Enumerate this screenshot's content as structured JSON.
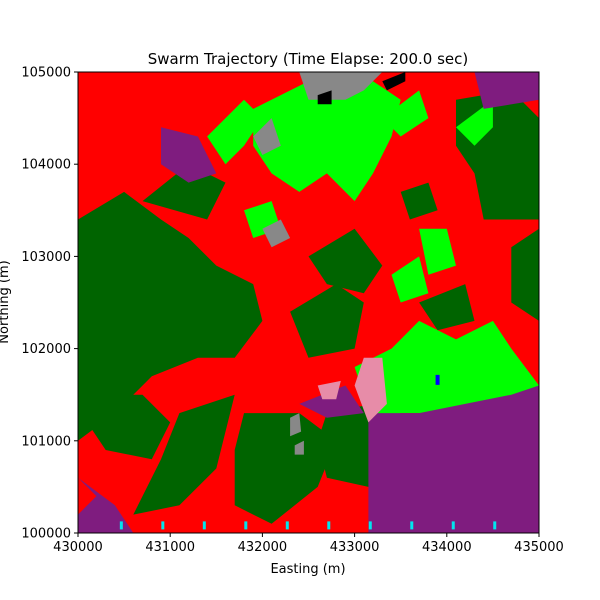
{
  "chart_data": {
    "type": "heatmap",
    "title": "Swarm Trajectory (Time Elapse: 200.0 sec)",
    "xlabel": "Easting (m)",
    "ylabel": "Northing (m)",
    "xlim": [
      430000,
      435000
    ],
    "ylim": [
      100000,
      105000
    ],
    "x_ticks": [
      430000,
      431000,
      432000,
      433000,
      434000,
      435000
    ],
    "y_ticks": [
      100000,
      101000,
      102000,
      103000,
      104000,
      105000
    ],
    "x_tick_labels": [
      "430000",
      "431000",
      "432000",
      "433000",
      "434000",
      "435000"
    ],
    "y_tick_labels": [
      "100000",
      "101000",
      "102000",
      "103000",
      "104000",
      "105000"
    ],
    "grid": false,
    "colors": {
      "red": "#ff0000",
      "dark_green": "#006400",
      "bright_green": "#00ff00",
      "purple": "#7f1c7f",
      "gray": "#888888",
      "pink": "#e78ca8",
      "black": "#000000",
      "blue": "#0000ff",
      "cyan": "#00e5ee"
    },
    "agent_markers": {
      "color": "cyan",
      "northing": 100050,
      "easting": [
        430470,
        430920,
        431370,
        431820,
        432270,
        432720,
        433170,
        433620,
        434070,
        434520
      ]
    },
    "blue_marker": {
      "easting": 433900,
      "northing": 101650
    },
    "regions": [
      {
        "color": "red",
        "points": [
          [
            430000,
            105000
          ],
          [
            435000,
            105000
          ],
          [
            435000,
            100000
          ],
          [
            430000,
            100000
          ]
        ]
      },
      {
        "color": "dark_green",
        "points": [
          [
            430000,
            103400
          ],
          [
            430500,
            103700
          ],
          [
            430900,
            103400
          ],
          [
            431200,
            103200
          ],
          [
            431500,
            102900
          ],
          [
            431900,
            102700
          ],
          [
            432000,
            102300
          ],
          [
            431700,
            101900
          ],
          [
            431300,
            101900
          ],
          [
            430800,
            101700
          ],
          [
            430400,
            101300
          ],
          [
            430000,
            101000
          ]
        ]
      },
      {
        "color": "dark_green",
        "points": [
          [
            430700,
            103600
          ],
          [
            431200,
            104000
          ],
          [
            431600,
            103800
          ],
          [
            431400,
            103400
          ]
        ]
      },
      {
        "color": "dark_green",
        "points": [
          [
            430200,
            101500
          ],
          [
            430700,
            101500
          ],
          [
            431000,
            101200
          ],
          [
            430800,
            100800
          ],
          [
            430300,
            100900
          ],
          [
            430100,
            101200
          ]
        ]
      },
      {
        "color": "dark_green",
        "points": [
          [
            431100,
            101300
          ],
          [
            431700,
            101500
          ],
          [
            431500,
            100700
          ],
          [
            431100,
            100300
          ],
          [
            430600,
            100200
          ],
          [
            430900,
            100800
          ]
        ]
      },
      {
        "color": "dark_green",
        "points": [
          [
            431800,
            101300
          ],
          [
            432400,
            101300
          ],
          [
            432800,
            101000
          ],
          [
            432600,
            100500
          ],
          [
            432100,
            100100
          ],
          [
            431700,
            100300
          ],
          [
            431700,
            100900
          ]
        ]
      },
      {
        "color": "dark_green",
        "points": [
          [
            432300,
            102400
          ],
          [
            432800,
            102700
          ],
          [
            433100,
            102500
          ],
          [
            433000,
            102000
          ],
          [
            432500,
            101900
          ]
        ]
      },
      {
        "color": "dark_green",
        "points": [
          [
            432500,
            103000
          ],
          [
            433000,
            103300
          ],
          [
            433300,
            102900
          ],
          [
            433100,
            102600
          ],
          [
            432700,
            102700
          ]
        ]
      },
      {
        "color": "dark_green",
        "points": [
          [
            432700,
            101300
          ],
          [
            433200,
            101400
          ],
          [
            433300,
            101000
          ],
          [
            433150,
            100500
          ],
          [
            432700,
            100600
          ],
          [
            432600,
            101000
          ]
        ]
      },
      {
        "color": "dark_green",
        "points": [
          [
            433700,
            102500
          ],
          [
            434200,
            102700
          ],
          [
            434300,
            102300
          ],
          [
            433900,
            102200
          ]
        ]
      },
      {
        "color": "dark_green",
        "points": [
          [
            434100,
            104700
          ],
          [
            434700,
            104800
          ],
          [
            435000,
            104500
          ],
          [
            435000,
            103400
          ],
          [
            434400,
            103400
          ],
          [
            434300,
            103900
          ],
          [
            434100,
            104200
          ]
        ]
      },
      {
        "color": "dark_green",
        "points": [
          [
            434700,
            103100
          ],
          [
            435000,
            103300
          ],
          [
            435000,
            102300
          ],
          [
            434700,
            102500
          ]
        ]
      },
      {
        "color": "dark_green",
        "points": [
          [
            433500,
            103700
          ],
          [
            433800,
            103800
          ],
          [
            433900,
            103500
          ],
          [
            433600,
            103400
          ]
        ]
      },
      {
        "color": "bright_green",
        "points": [
          [
            431400,
            104300
          ],
          [
            431800,
            104700
          ],
          [
            432000,
            104500
          ],
          [
            431800,
            104200
          ],
          [
            431600,
            104000
          ]
        ]
      },
      {
        "color": "bright_green",
        "points": [
          [
            431900,
            104600
          ],
          [
            432500,
            104900
          ],
          [
            433200,
            104900
          ],
          [
            433500,
            104700
          ],
          [
            433400,
            104300
          ],
          [
            433200,
            103900
          ],
          [
            433000,
            103600
          ],
          [
            432700,
            103900
          ],
          [
            432400,
            103700
          ],
          [
            432100,
            103900
          ],
          [
            431900,
            104200
          ]
        ]
      },
      {
        "color": "bright_green",
        "points": [
          [
            433300,
            104500
          ],
          [
            433700,
            104800
          ],
          [
            433800,
            104500
          ],
          [
            433500,
            104300
          ]
        ]
      },
      {
        "color": "bright_green",
        "points": [
          [
            434100,
            104400
          ],
          [
            434500,
            104700
          ],
          [
            434500,
            104400
          ],
          [
            434300,
            104200
          ]
        ]
      },
      {
        "color": "bright_green",
        "points": [
          [
            431800,
            103500
          ],
          [
            432100,
            103600
          ],
          [
            432200,
            103300
          ],
          [
            431900,
            103200
          ]
        ]
      },
      {
        "color": "bright_green",
        "points": [
          [
            433400,
            102800
          ],
          [
            433700,
            103000
          ],
          [
            433800,
            102600
          ],
          [
            433500,
            102500
          ]
        ]
      },
      {
        "color": "bright_green",
        "points": [
          [
            433700,
            103300
          ],
          [
            434000,
            103300
          ],
          [
            434100,
            102900
          ],
          [
            433800,
            102800
          ]
        ]
      },
      {
        "color": "bright_green",
        "points": [
          [
            433000,
            101800
          ],
          [
            433400,
            102000
          ],
          [
            433700,
            102300
          ],
          [
            434100,
            102100
          ],
          [
            434500,
            102300
          ],
          [
            434700,
            102000
          ],
          [
            435000,
            101600
          ],
          [
            435000,
            101500
          ],
          [
            434400,
            101400
          ],
          [
            433900,
            101300
          ],
          [
            433500,
            101300
          ],
          [
            433200,
            101200
          ]
        ]
      },
      {
        "color": "purple",
        "points": [
          [
            433150,
            101300
          ],
          [
            433700,
            101300
          ],
          [
            434200,
            101400
          ],
          [
            434700,
            101500
          ],
          [
            435000,
            101600
          ],
          [
            435000,
            100000
          ],
          [
            433150,
            100000
          ]
        ]
      },
      {
        "color": "purple",
        "points": [
          [
            430000,
            100600
          ],
          [
            430200,
            100400
          ],
          [
            430000,
            100200
          ],
          [
            430000,
            100000
          ],
          [
            430600,
            100000
          ],
          [
            430400,
            100300
          ]
        ]
      },
      {
        "color": "purple",
        "points": [
          [
            432400,
            101400
          ],
          [
            432900,
            101600
          ],
          [
            433100,
            101300
          ],
          [
            432700,
            101250
          ]
        ]
      },
      {
        "color": "purple",
        "points": [
          [
            430900,
            104400
          ],
          [
            431300,
            104300
          ],
          [
            431500,
            103900
          ],
          [
            431200,
            103800
          ],
          [
            430900,
            104000
          ]
        ]
      },
      {
        "color": "purple",
        "points": [
          [
            434300,
            105000
          ],
          [
            435000,
            105000
          ],
          [
            435000,
            104700
          ],
          [
            434400,
            104600
          ]
        ]
      },
      {
        "color": "pink",
        "points": [
          [
            433100,
            101900
          ],
          [
            433300,
            101900
          ],
          [
            433350,
            101400
          ],
          [
            433150,
            101200
          ],
          [
            433000,
            101600
          ]
        ]
      },
      {
        "color": "pink",
        "points": [
          [
            432600,
            101600
          ],
          [
            432850,
            101650
          ],
          [
            432800,
            101450
          ],
          [
            432650,
            101450
          ]
        ]
      },
      {
        "color": "gray",
        "points": [
          [
            432400,
            105000
          ],
          [
            433300,
            105000
          ],
          [
            433100,
            104800
          ],
          [
            432900,
            104700
          ],
          [
            432500,
            104700
          ]
        ]
      },
      {
        "color": "gray",
        "points": [
          [
            431900,
            104300
          ],
          [
            432100,
            104500
          ],
          [
            432200,
            104200
          ],
          [
            432000,
            104100
          ]
        ]
      },
      {
        "color": "gray",
        "points": [
          [
            432000,
            103300
          ],
          [
            432200,
            103400
          ],
          [
            432300,
            103200
          ],
          [
            432100,
            103100
          ]
        ]
      },
      {
        "color": "gray",
        "points": [
          [
            432300,
            101250
          ],
          [
            432400,
            101300
          ],
          [
            432420,
            101100
          ],
          [
            432300,
            101050
          ]
        ]
      },
      {
        "color": "gray",
        "points": [
          [
            432350,
            100950
          ],
          [
            432450,
            101000
          ],
          [
            432450,
            100850
          ],
          [
            432350,
            100850
          ]
        ]
      },
      {
        "color": "black",
        "points": [
          [
            432600,
            104750
          ],
          [
            432750,
            104800
          ],
          [
            432750,
            104650
          ],
          [
            432600,
            104650
          ]
        ]
      },
      {
        "color": "black",
        "points": [
          [
            433300,
            104900
          ],
          [
            433550,
            105000
          ],
          [
            433550,
            104900
          ],
          [
            433350,
            104800
          ]
        ]
      }
    ]
  }
}
